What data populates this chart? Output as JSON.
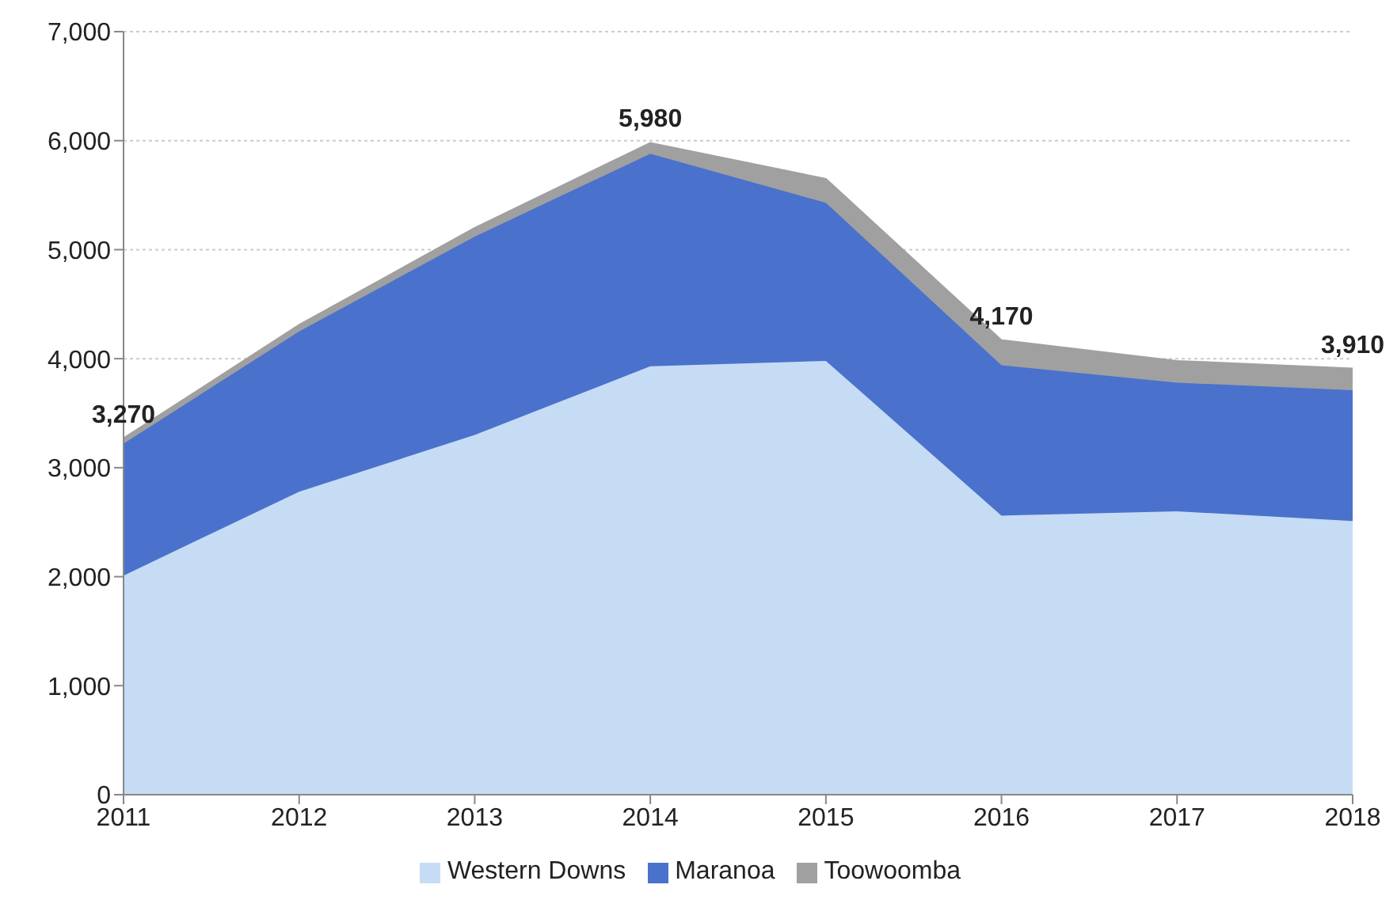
{
  "chart_data": {
    "type": "area",
    "stacked": true,
    "categories": [
      "2011",
      "2012",
      "2013",
      "2014",
      "2015",
      "2016",
      "2017",
      "2018"
    ],
    "series": [
      {
        "name": "Western Downs",
        "color": "#c6dcf5",
        "values": [
          2010,
          2780,
          3300,
          3930,
          3980,
          2560,
          2600,
          2510
        ]
      },
      {
        "name": "Maranoa",
        "color": "#4a72cc",
        "values": [
          1210,
          1470,
          1820,
          1950,
          1450,
          1380,
          1180,
          1200
        ]
      },
      {
        "name": "Toowoomba",
        "color": "#a0a0a0",
        "values": [
          50,
          60,
          80,
          100,
          220,
          230,
          200,
          200
        ]
      }
    ],
    "totals": [
      "3,270",
      null,
      null,
      "5,980",
      null,
      "4,170",
      null,
      "3,910"
    ],
    "ylim": [
      0,
      7000
    ],
    "yticks": [
      0,
      {
        "value": 1000,
        "label": "1,000"
      },
      {
        "value": 2000,
        "label": "2,000"
      },
      {
        "value": 3000,
        "label": "3,000"
      },
      {
        "value": 4000,
        "label": "4,000"
      },
      {
        "value": 5000,
        "label": "5,000"
      },
      {
        "value": 6000,
        "label": "6,000"
      },
      {
        "value": 7000,
        "label": "7,000"
      }
    ],
    "grid": "y",
    "legend": "bottom"
  }
}
